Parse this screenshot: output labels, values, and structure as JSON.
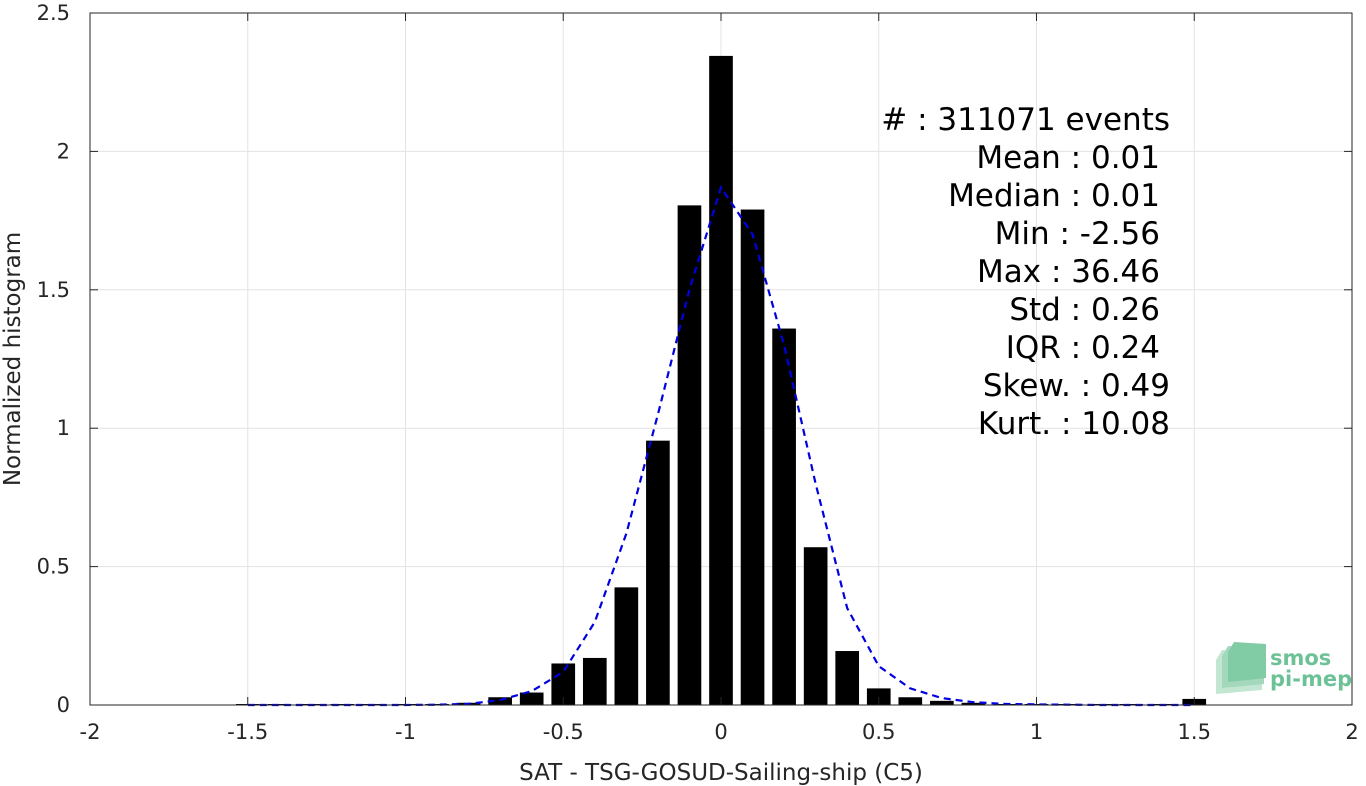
{
  "chart_data": {
    "type": "bar",
    "xlabel": "SAT - TSG-GOSUD-Sailing-ship (C5)",
    "ylabel": "Normalized histogram",
    "xlim": [
      -2,
      2
    ],
    "ylim": [
      0,
      2.5
    ],
    "grid": true,
    "x_ticks": [
      -2,
      -1.5,
      -1,
      -0.5,
      0,
      0.5,
      1,
      1.5,
      2
    ],
    "x_tick_labels": [
      "-2",
      "-1.5",
      "-1",
      "-0.5",
      "0",
      "0.5",
      "1",
      "1.5",
      "2"
    ],
    "y_ticks": [
      0,
      0.5,
      1,
      1.5,
      2,
      2.5
    ],
    "y_tick_labels": [
      "0",
      "0.5",
      "1",
      "1.5",
      "2",
      "2.5"
    ],
    "bin_width": 0.1,
    "bars": [
      {
        "x": -1.5,
        "value": 0.002
      },
      {
        "x": -1.4,
        "value": 0.001
      },
      {
        "x": -1.3,
        "value": 0.001
      },
      {
        "x": -1.2,
        "value": 0.001
      },
      {
        "x": -1.1,
        "value": 0.001
      },
      {
        "x": -1.0,
        "value": 0.002
      },
      {
        "x": -0.9,
        "value": 0.003
      },
      {
        "x": -0.8,
        "value": 0.008
      },
      {
        "x": -0.7,
        "value": 0.028
      },
      {
        "x": -0.6,
        "value": 0.045
      },
      {
        "x": -0.5,
        "value": 0.15
      },
      {
        "x": -0.4,
        "value": 0.17
      },
      {
        "x": -0.3,
        "value": 0.425
      },
      {
        "x": -0.2,
        "value": 0.955
      },
      {
        "x": -0.1,
        "value": 1.805
      },
      {
        "x": 0.0,
        "value": 2.345
      },
      {
        "x": 0.1,
        "value": 1.79
      },
      {
        "x": 0.2,
        "value": 1.36
      },
      {
        "x": 0.3,
        "value": 0.57
      },
      {
        "x": 0.4,
        "value": 0.195
      },
      {
        "x": 0.5,
        "value": 0.06
      },
      {
        "x": 0.6,
        "value": 0.028
      },
      {
        "x": 0.7,
        "value": 0.015
      },
      {
        "x": 0.8,
        "value": 0.008
      },
      {
        "x": 0.9,
        "value": 0.003
      },
      {
        "x": 1.0,
        "value": 0.002
      },
      {
        "x": 1.1,
        "value": 0.001
      },
      {
        "x": 1.2,
        "value": 0.001
      },
      {
        "x": 1.3,
        "value": 0.001
      },
      {
        "x": 1.4,
        "value": 0.001
      },
      {
        "x": 1.5,
        "value": 0.022
      }
    ],
    "fit_curve": {
      "style": "dashed",
      "color": "#0000e0",
      "x": [
        -1.5,
        -1.4,
        -1.3,
        -1.2,
        -1.1,
        -1.0,
        -0.9,
        -0.8,
        -0.7,
        -0.6,
        -0.5,
        -0.4,
        -0.3,
        -0.2,
        -0.1,
        0.0,
        0.1,
        0.2,
        0.3,
        0.4,
        0.5,
        0.6,
        0.7,
        0.8,
        0.9,
        1.0,
        1.1,
        1.2,
        1.3,
        1.4,
        1.5
      ],
      "y": [
        0.0,
        0.0,
        0.0,
        0.0,
        0.0,
        0.0,
        0.001,
        0.004,
        0.018,
        0.05,
        0.12,
        0.3,
        0.62,
        1.05,
        1.5,
        1.87,
        1.7,
        1.3,
        0.8,
        0.35,
        0.14,
        0.06,
        0.025,
        0.01,
        0.004,
        0.002,
        0.001,
        0.0,
        0.0,
        0.0,
        0.0
      ]
    },
    "colors": {
      "bars": "#000000",
      "grid": "#e3e3e3",
      "axis": "#262626"
    },
    "annotations": [
      "#  : 311071 events",
      "Mean : 0.01",
      "Median : 0.01",
      "Min : -2.56",
      "Max : 36.46",
      "Std : 0.26",
      "IQR : 0.24",
      "Skew. : 0.49",
      "Kurt. : 10.08"
    ]
  },
  "logo": {
    "line1": "smos",
    "line2": "pi-mep",
    "color": "#6cc296"
  }
}
